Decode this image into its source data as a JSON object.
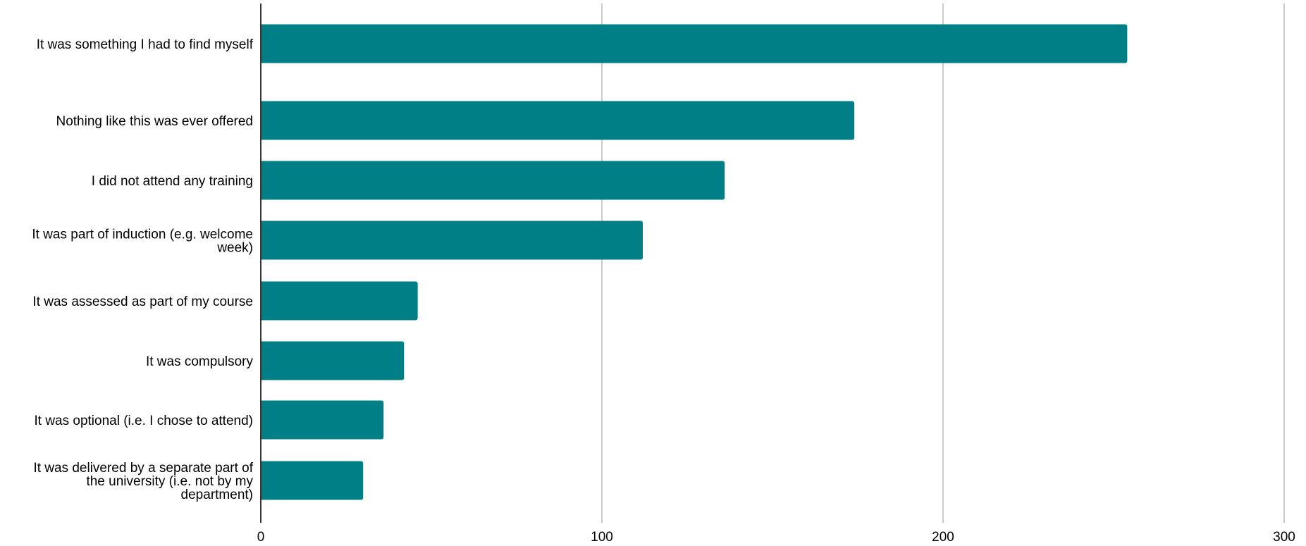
{
  "chart_data": {
    "type": "bar",
    "orientation": "horizontal",
    "title": "",
    "xlabel": "",
    "ylabel": "",
    "categories": [
      "It was something I had to find myself",
      "Nothing like this was ever offered",
      "I did not attend any training",
      "It was part of induction (e.g. welcome week)",
      "It was assessed as part of my course",
      "It was compulsory",
      "It was optional (i.e. I chose to attend)",
      "It was delivered by a separate part of the university (i.e. not by my department)"
    ],
    "category_lines": [
      [
        "It was something I had to find myself"
      ],
      [
        "Nothing like this was ever offered"
      ],
      [
        "I did not attend any training"
      ],
      [
        "It was part of induction (e.g. welcome",
        "week)"
      ],
      [
        "It was assessed as part of my course"
      ],
      [
        "It was compulsory"
      ],
      [
        "It was optional (i.e. I chose to attend)"
      ],
      [
        "It was delivered by a separate part of",
        "the university (i.e. not by my",
        "department)"
      ]
    ],
    "values": [
      254,
      174,
      136,
      112,
      46,
      42,
      36,
      30
    ],
    "xlim": [
      0,
      300
    ],
    "xticks": [
      0,
      100,
      200,
      300
    ],
    "xtick_labels": [
      "0",
      "100",
      "200",
      "300"
    ],
    "grid": true,
    "legend": "none",
    "bar_color": "#007f86",
    "grid_color": "#cccccc",
    "axis_color": "#333333"
  }
}
